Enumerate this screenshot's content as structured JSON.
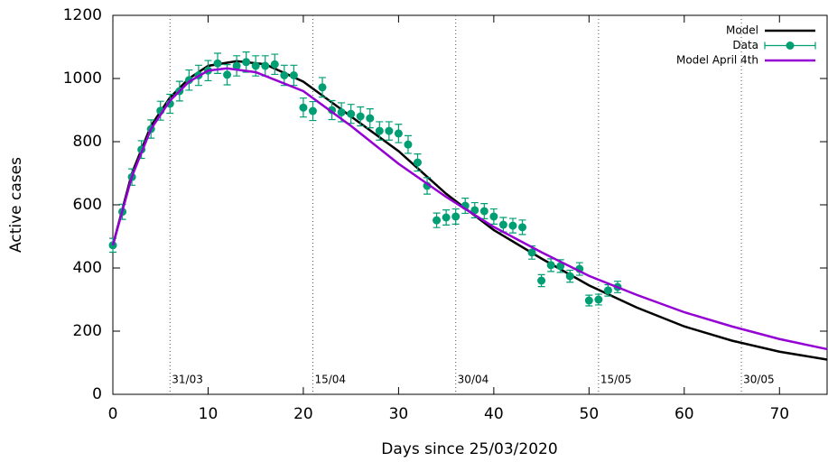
{
  "chart_data": {
    "type": "line",
    "xlabel": "Days since 25/03/2020",
    "ylabel": "Active cases",
    "xlim": [
      0,
      75
    ],
    "ylim": [
      0,
      1200
    ],
    "xticks": [
      0,
      10,
      20,
      30,
      40,
      50,
      60,
      70
    ],
    "yticks": [
      0,
      200,
      400,
      600,
      800,
      1000,
      1200
    ],
    "legend": "upper right",
    "annotations": [
      {
        "x": 6,
        "label": "31/03"
      },
      {
        "x": 21,
        "label": "15/04"
      },
      {
        "x": 36,
        "label": "30/04"
      },
      {
        "x": 51,
        "label": "15/05"
      },
      {
        "x": 66,
        "label": "30/05"
      }
    ],
    "annotation_color": "#e69f00",
    "series": [
      {
        "name": "Model",
        "mode": "line",
        "color": "#000000",
        "x": [
          0,
          2,
          4,
          6,
          8,
          10,
          13,
          16,
          20,
          25,
          30,
          35,
          40,
          45,
          50,
          55,
          60,
          65,
          70,
          75
        ],
        "values": [
          472,
          700,
          850,
          940,
          1000,
          1040,
          1055,
          1045,
          990,
          880,
          770,
          635,
          520,
          430,
          345,
          275,
          215,
          170,
          135,
          110
        ]
      },
      {
        "name": "Data",
        "mode": "errorbars",
        "color": "#009e73",
        "x": [
          0,
          1,
          2,
          3,
          4,
          5,
          6,
          7,
          8,
          9,
          10,
          11,
          12,
          13,
          14,
          15,
          16,
          17,
          18,
          19,
          20,
          21,
          22,
          23,
          24,
          25,
          26,
          27,
          28,
          29,
          30,
          31,
          32,
          33,
          34,
          35,
          36,
          37,
          38,
          39,
          40,
          41,
          42,
          43,
          44,
          45,
          46,
          47,
          48,
          49,
          50,
          51,
          52,
          53
        ],
        "values": [
          472,
          578,
          688,
          775,
          840,
          898,
          920,
          960,
          995,
          1010,
          1025,
          1048,
          1012,
          1040,
          1052,
          1040,
          1040,
          1045,
          1010,
          1010,
          908,
          897,
          972,
          900,
          893,
          888,
          880,
          874,
          834,
          834,
          826,
          791,
          734,
          660,
          551,
          560,
          563,
          597,
          583,
          580,
          563,
          537,
          534,
          529,
          449,
          360,
          409,
          406,
          374,
          397,
          297,
          300,
          329,
          340
        ],
        "errors": [
          22,
          24,
          26,
          28,
          29,
          30,
          30,
          31,
          32,
          32,
          32,
          32,
          32,
          32,
          32,
          32,
          32,
          32,
          32,
          32,
          30,
          30,
          31,
          30,
          30,
          30,
          30,
          30,
          29,
          29,
          29,
          28,
          27,
          26,
          23,
          24,
          24,
          24,
          24,
          24,
          24,
          23,
          23,
          23,
          21,
          19,
          20,
          20,
          19,
          20,
          17,
          17,
          18,
          18
        ]
      },
      {
        "name": "Model April 4th",
        "mode": "line",
        "color": "#9400d3",
        "x": [
          0,
          2,
          4,
          6,
          8,
          10,
          12,
          15,
          20,
          25,
          30,
          35,
          40,
          45,
          50,
          55,
          60,
          65,
          70,
          75
        ],
        "values": [
          472,
          690,
          840,
          930,
          990,
          1025,
          1032,
          1020,
          960,
          850,
          730,
          625,
          530,
          450,
          375,
          315,
          260,
          215,
          175,
          143
        ]
      }
    ]
  }
}
